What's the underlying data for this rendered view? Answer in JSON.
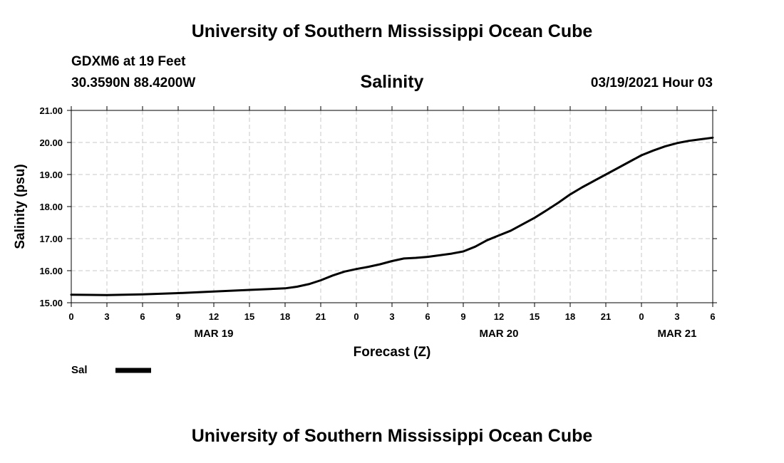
{
  "header": {
    "title": "University of Southern Mississippi Ocean Cube",
    "station": "GDXM6 at 19 Feet",
    "coords": "30.3590N 88.4200W",
    "datetime": "03/19/2021 Hour 03"
  },
  "footer": {
    "title": "University of Southern Mississippi Ocean Cube"
  },
  "colors": {
    "line": "#000000",
    "grid": "#c8c8c8"
  },
  "chart_data": {
    "type": "line",
    "title": "Salinity",
    "xlabel": "Forecast (Z)",
    "ylabel": "Salinity (psu)",
    "ylim": [
      15.0,
      21.0
    ],
    "xlim": [
      0,
      54
    ],
    "grid": true,
    "y_ticks": [
      "15.00",
      "16.00",
      "17.00",
      "18.00",
      "19.00",
      "20.00",
      "21.00"
    ],
    "x_ticks": [
      "0",
      "3",
      "6",
      "9",
      "12",
      "15",
      "18",
      "21",
      "0",
      "3",
      "6",
      "9",
      "12",
      "15",
      "18",
      "21",
      "0",
      "3",
      "6"
    ],
    "date_labels": [
      {
        "label": "MAR 19",
        "hour": 12
      },
      {
        "label": "MAR 20",
        "hour": 36
      },
      {
        "label": "MAR 21",
        "hour": 51
      }
    ],
    "legend": {
      "label": "Sal",
      "placement": "bottom-left"
    },
    "series": [
      {
        "name": "Sal",
        "x": [
          0,
          3,
          6,
          9,
          12,
          15,
          18,
          19,
          20,
          21,
          22,
          23,
          24,
          25,
          26,
          27,
          28,
          29,
          30,
          31,
          32,
          33,
          34,
          35,
          36,
          37,
          38,
          39,
          40,
          41,
          42,
          43,
          44,
          45,
          46,
          47,
          48,
          49,
          50,
          51,
          52,
          53,
          54
        ],
        "values": [
          15.25,
          15.24,
          15.26,
          15.3,
          15.35,
          15.4,
          15.45,
          15.5,
          15.58,
          15.7,
          15.85,
          15.97,
          16.05,
          16.12,
          16.2,
          16.3,
          16.38,
          16.4,
          16.43,
          16.48,
          16.53,
          16.6,
          16.75,
          16.95,
          17.1,
          17.25,
          17.45,
          17.65,
          17.88,
          18.12,
          18.38,
          18.6,
          18.8,
          19.0,
          19.2,
          19.4,
          19.6,
          19.75,
          19.88,
          19.98,
          20.05,
          20.1,
          20.15
        ]
      }
    ]
  }
}
